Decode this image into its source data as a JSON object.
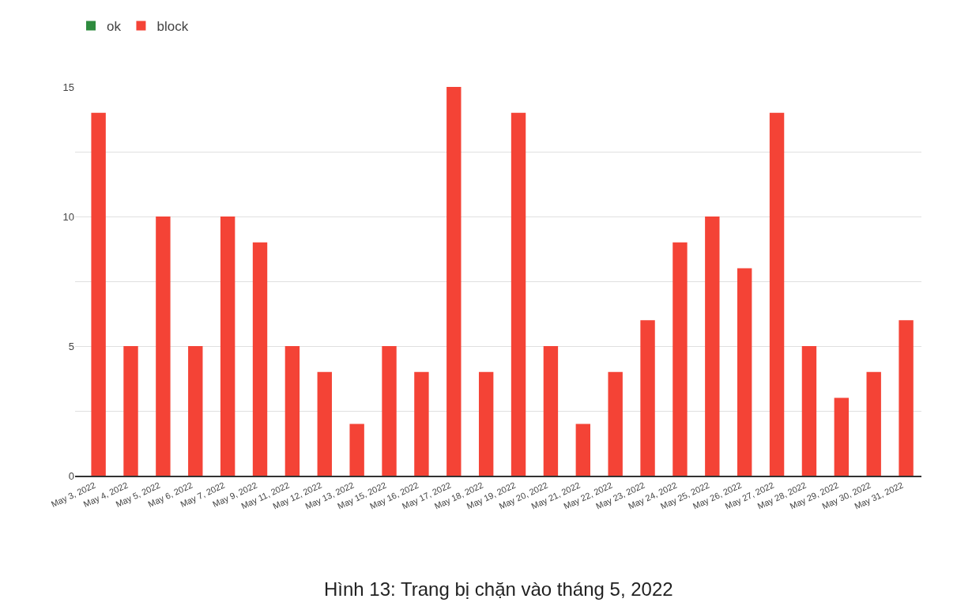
{
  "chart_data": {
    "type": "bar",
    "categories": [
      "May 3, 2022",
      "May 4, 2022",
      "May 5, 2022",
      "May 6, 2022",
      "May 7, 2022",
      "May 9, 2022",
      "May 11, 2022",
      "May 12, 2022",
      "May 13, 2022",
      "May 15, 2022",
      "May 16, 2022",
      "May 17, 2022",
      "May 18, 2022",
      "May 19, 2022",
      "May 20, 2022",
      "May 21, 2022",
      "May 22, 2022",
      "May 23, 2022",
      "May 24, 2022",
      "May 25, 2022",
      "May 26, 2022",
      "May 27, 2022",
      "May 28, 2022",
      "May 29, 2022",
      "May 30, 2022",
      "May 31, 2022"
    ],
    "series": [
      {
        "name": "ok",
        "color": "#2e8b3e",
        "values": [
          0,
          0,
          0,
          0,
          0,
          0,
          0,
          0,
          0,
          0,
          0,
          0,
          0,
          0,
          0,
          0,
          0,
          0,
          0,
          0,
          0,
          0,
          0,
          0,
          0,
          0
        ]
      },
      {
        "name": "block",
        "color": "#f44336",
        "values": [
          14,
          5,
          10,
          5,
          10,
          9,
          5,
          4,
          2,
          5,
          4,
          15,
          4,
          14,
          5,
          2,
          4,
          6,
          9,
          10,
          8,
          14,
          5,
          3,
          4,
          6
        ]
      }
    ],
    "ylim": [
      0,
      15
    ],
    "yticks": [
      0,
      {
        "value": 2.5,
        "label": null
      },
      5,
      {
        "value": 7.5,
        "label": null
      },
      10,
      {
        "value": 12.5,
        "label": null
      },
      15
    ],
    "grid": "y",
    "legend": "top left",
    "annotations": [
      "Hình 13: Trang bị chặn vào tháng 5, 2022"
    ]
  }
}
